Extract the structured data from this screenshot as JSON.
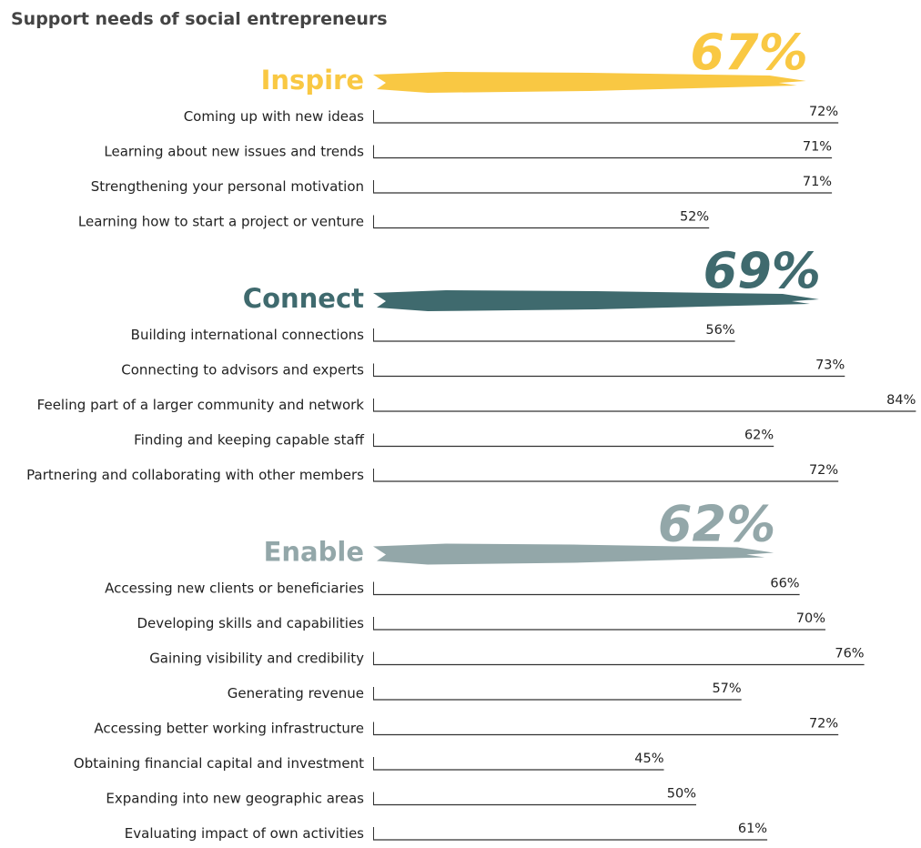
{
  "chart_data": {
    "type": "bar",
    "title": "Support needs of social entrepreneurs",
    "groups": [
      {
        "name": "Inspire",
        "color": "#f9c843",
        "total": 67,
        "total_label": "67%",
        "categories": [
          "Coming up with new ideas",
          "Learning about new issues and trends",
          "Strengthening your personal motivation",
          "Learning how to start a project or venture"
        ],
        "values": [
          72,
          71,
          71,
          52
        ],
        "value_labels": [
          "72%",
          "71%",
          "71%",
          "52%"
        ]
      },
      {
        "name": "Connect",
        "color": "#3f6a6e",
        "total": 69,
        "total_label": "69%",
        "categories": [
          "Building international connections",
          "Connecting to advisors and experts",
          "Feeling part of a larger community and network",
          "Finding and keeping capable staff",
          "Partnering and collaborating with other members"
        ],
        "values": [
          56,
          73,
          84,
          62,
          72
        ],
        "value_labels": [
          "56%",
          "73%",
          "84%",
          "62%",
          "72%"
        ]
      },
      {
        "name": "Enable",
        "color": "#93a7a9",
        "total": 62,
        "total_label": "62%",
        "categories": [
          "Accessing new clients or beneficiaries",
          "Developing skills and capabilities",
          "Gaining visibility and credibility",
          "Generating revenue",
          "Accessing better working infrastructure",
          "Obtaining financial capital and investment",
          "Expanding into new geographic areas",
          "Evaluating impact of own activities"
        ],
        "values": [
          66,
          70,
          76,
          57,
          72,
          45,
          50,
          61
        ],
        "value_labels": [
          "66%",
          "70%",
          "76%",
          "57%",
          "72%",
          "45%",
          "50%",
          "61%"
        ]
      }
    ]
  }
}
